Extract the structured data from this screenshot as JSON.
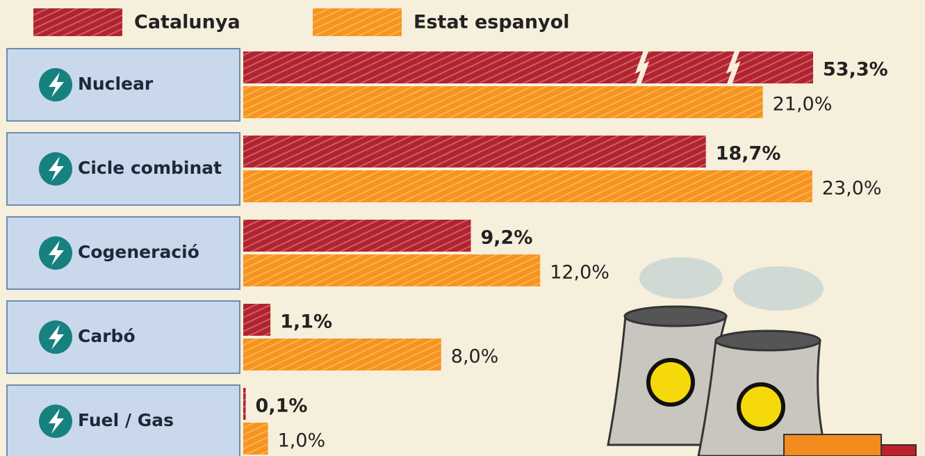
{
  "chart_data": {
    "type": "bar",
    "orientation": "horizontal",
    "categories": [
      "Nuclear",
      "Cicle combinat",
      "Cogeneració",
      "Carbó",
      "Fuel / Gas"
    ],
    "series": [
      {
        "name": "Catalunya",
        "color": "#b3232f",
        "values": [
          53.3,
          18.7,
          9.2,
          1.1,
          0.1
        ],
        "value_labels": [
          "53,3%",
          "18,7%",
          "9,2%",
          "1,1%",
          "0,1%"
        ]
      },
      {
        "name": "Estat espanyol",
        "color": "#f7941d",
        "values": [
          21.0,
          23.0,
          12.0,
          8.0,
          1.0
        ],
        "value_labels": [
          "21,0%",
          "23,0%",
          "12,0%",
          "8,0%",
          "1,0%"
        ]
      }
    ]
  }
}
